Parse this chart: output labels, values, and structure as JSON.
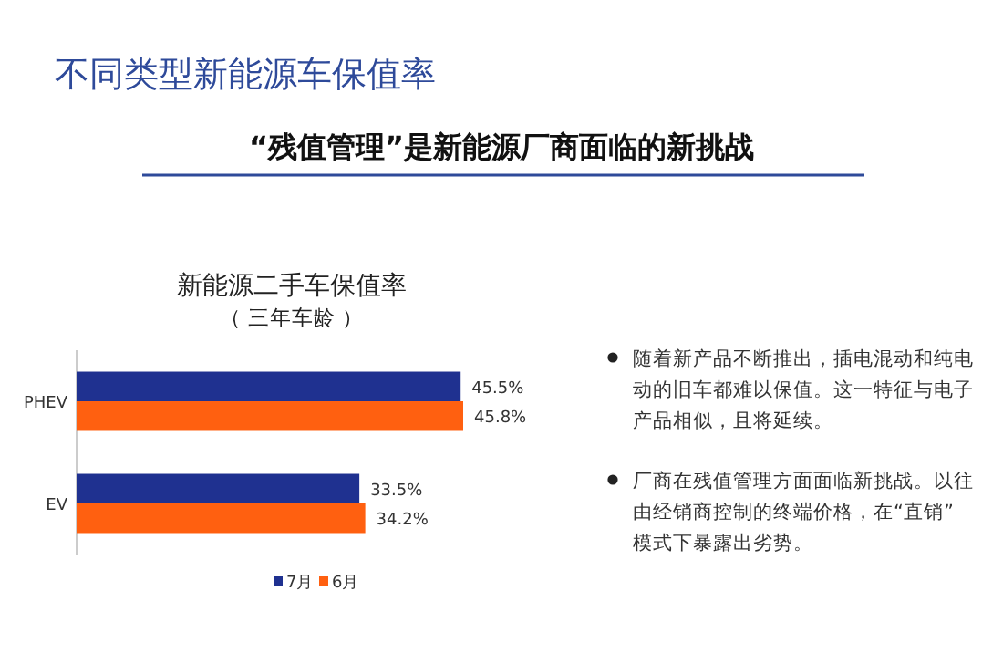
{
  "chart_data": {
    "type": "bar",
    "orientation": "horizontal",
    "title": "新能源二手车保值率",
    "subtitle": "（ 三年车龄 ）",
    "categories": [
      "PHEV",
      "EV"
    ],
    "series": [
      {
        "name": "7月",
        "color": "#1f3190",
        "values": [
          45.5,
          33.5
        ],
        "value_labels": [
          "45.5%",
          "33.5%"
        ]
      },
      {
        "name": "6月",
        "color": "#ff6010",
        "values": [
          45.8,
          34.2
        ],
        "value_labels": [
          "45.8%",
          "34.2%"
        ]
      }
    ],
    "legend": "bottom",
    "annotations": [
      "不同类型新能源车保值率",
      "“残值管理”是新能源厂商面临的新挑战",
      "随着新产品不断推出，插电混动和纯电动的旧车都难以保值。这一特征与电子产品相似，且将延续。",
      "厂商在残值管理方面面临新挑战。以往由经销商控制的终端价格，在“直销”模式下暴露出劣势。"
    ]
  }
}
